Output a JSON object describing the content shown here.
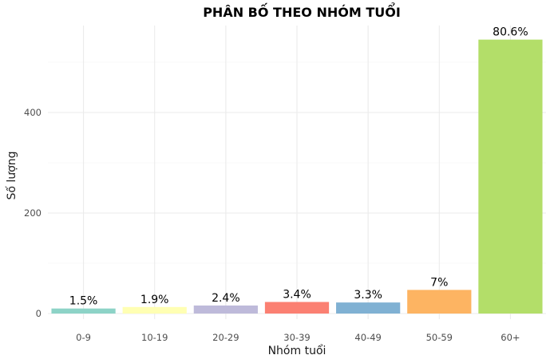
{
  "chart_data": {
    "type": "bar",
    "title": "PHÂN BỐ THEO NHÓM TUỔI",
    "xlabel": "Nhóm tuổi",
    "ylabel": "Số lượng",
    "categories": [
      "0-9",
      "10-19",
      "20-29",
      "30-39",
      "40-49",
      "50-59",
      "60+"
    ],
    "values": [
      10,
      13,
      16,
      23,
      22,
      47,
      545
    ],
    "data_labels": [
      "1.5%",
      "1.9%",
      "2.4%",
      "3.4%",
      "3.3%",
      "7%",
      "80.6%"
    ],
    "colors": [
      "#8DD3C7",
      "#FFFFB3",
      "#BEBADA",
      "#FB8072",
      "#80B1D3",
      "#FDB462",
      "#B3DE69"
    ],
    "ylim": [
      0,
      570
    ],
    "yticks": [
      0,
      200,
      400
    ],
    "grid": true,
    "legend": "none"
  }
}
